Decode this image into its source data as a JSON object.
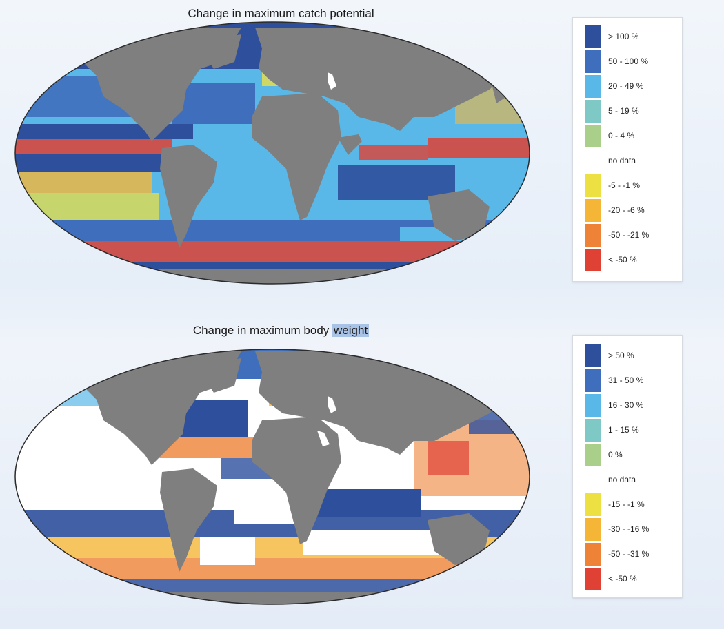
{
  "maps": [
    {
      "title": "Change in maximum catch potential",
      "legend": [
        {
          "label": "> 100 %",
          "color": "#2d4f9c"
        },
        {
          "label": "50 - 100 %",
          "color": "#3f6fbc"
        },
        {
          "label": "20 - 49 %",
          "color": "#5ab8e8"
        },
        {
          "label": "5 - 19 %",
          "color": "#7ec9c6"
        },
        {
          "label": "0 - 4 %",
          "color": "#a9cf8a"
        },
        {
          "label": "no data",
          "color": "#ffffff"
        },
        {
          "label": "-5 - -1 %",
          "color": "#ece043"
        },
        {
          "label": "-20 - -6 %",
          "color": "#f5b638"
        },
        {
          "label": "-50 - -21 %",
          "color": "#ee8236"
        },
        {
          "label": "< -50 %",
          "color": "#df4134"
        }
      ]
    },
    {
      "title_main": "Change in maximum body ",
      "title_highlight": "weight",
      "legend": [
        {
          "label": "> 50 %",
          "color": "#2d4f9c"
        },
        {
          "label": "31 - 50 %",
          "color": "#3f6fbc"
        },
        {
          "label": "16 - 30 %",
          "color": "#5ab8e8"
        },
        {
          "label": "1 - 15 %",
          "color": "#7ec9c6"
        },
        {
          "label": "0 %",
          "color": "#a9cf8a"
        },
        {
          "label": "no data",
          "color": "#ffffff"
        },
        {
          "label": "-15 - -1 %",
          "color": "#ece043"
        },
        {
          "label": "-30 - -16 %",
          "color": "#f5b638"
        },
        {
          "label": "-50 - -31 %",
          "color": "#ee8236"
        },
        {
          "label": "< -50 %",
          "color": "#df4134"
        }
      ]
    }
  ],
  "land_color": "#7f7f7f"
}
